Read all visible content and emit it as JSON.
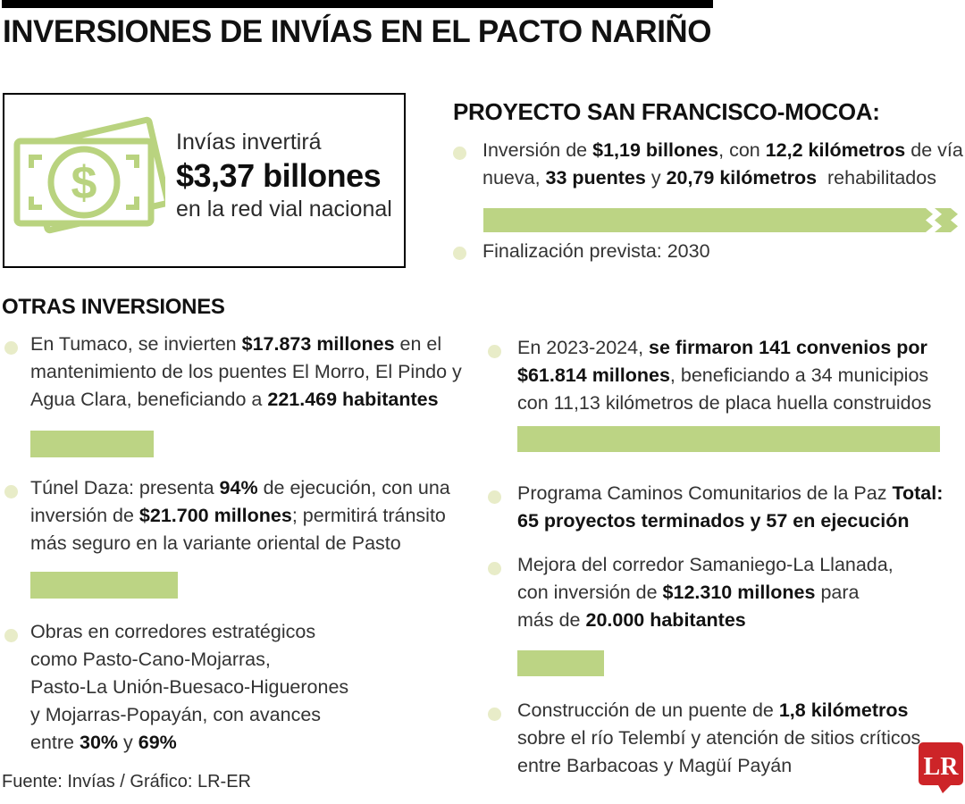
{
  "page": {
    "title": "INVERSIONES DE INVÍAS EN EL PACTO NARIÑO"
  },
  "summary_box": {
    "icon": "money-banknote-icon",
    "intro": "Invías invertirá",
    "amount": "$3,37 billones",
    "caption": "en la red vial nacional"
  },
  "project_section": {
    "heading": "PROYECTO SAN FRANCISCO-MOCOA:",
    "bullet1": [
      {
        "t": "Inversión de "
      },
      {
        "t": "$1,19 billones",
        "b": true
      },
      {
        "t": ", con "
      },
      {
        "t": "12,2 kilómetros",
        "b": true
      },
      {
        "t": " de vía",
        "br": true
      },
      {
        "t": "nueva, "
      },
      {
        "t": "33 puentes",
        "b": true
      },
      {
        "t": " y "
      },
      {
        "t": "20,79 kilómetros",
        "b": true
      },
      {
        "t": "  rehabilitados"
      }
    ],
    "bullet2": [
      {
        "t": "Finalización prevista: 2030"
      }
    ]
  },
  "others_section": {
    "heading": "OTRAS INVERSIONES",
    "left_bullet1": [
      {
        "t": "En Tumaco, se invierten "
      },
      {
        "t": "$17.873 millones",
        "b": true
      },
      {
        "t": " en el",
        "br": true
      },
      {
        "t": "mantenimiento de los puentes El Morro, El Pindo y",
        "br": true
      },
      {
        "t": "Agua Clara, beneficiando a "
      },
      {
        "t": "221.469 habitantes",
        "b": true
      }
    ],
    "left_bullet2": [
      {
        "t": "Túnel Daza: presenta "
      },
      {
        "t": "94%",
        "b": true
      },
      {
        "t": " de ejecución, con una",
        "br": true
      },
      {
        "t": "inversión de "
      },
      {
        "t": "$21.700 millones",
        "b": true
      },
      {
        "t": "; permitirá tránsito",
        "br": true
      },
      {
        "t": "más seguro en la variante oriental de Pasto"
      }
    ],
    "left_bullet3": [
      {
        "t": "Obras en corredores estratégicos",
        "br": true
      },
      {
        "t": "como Pasto-Cano-Mojarras,",
        "br": true
      },
      {
        "t": "Pasto-La Unión-Buesaco-Higuerones",
        "br": true
      },
      {
        "t": "y Mojarras-Popayán, con avances",
        "br": true
      },
      {
        "t": "entre "
      },
      {
        "t": "30%",
        "b": true
      },
      {
        "t": " y "
      },
      {
        "t": "69%",
        "b": true
      }
    ],
    "right_bullet1": [
      {
        "t": "En 2023-2024, "
      },
      {
        "t": "se firmaron 141 convenios por",
        "b": true,
        "br": true
      },
      {
        "t": "$61.814 millones",
        "b": true
      },
      {
        "t": ", beneficiando a 34 municipios",
        "br": true
      },
      {
        "t": "con 11,13 kilómetros de placa huella construidos"
      }
    ],
    "right_bullet2": [
      {
        "t": "Programa Caminos Comunitarios de la Paz "
      },
      {
        "t": "Total:",
        "b": true,
        "br": true
      },
      {
        "t": "65 proyectos terminados y 57 en ejecución",
        "b": true
      }
    ],
    "right_bullet3": [
      {
        "t": "Mejora del corredor Samaniego-La Llanada,",
        "br": true
      },
      {
        "t": "con inversión de "
      },
      {
        "t": "$12.310 millones",
        "b": true
      },
      {
        "t": " para",
        "br": true
      },
      {
        "t": "más de "
      },
      {
        "t": "20.000 habitantes",
        "b": true
      }
    ],
    "right_bullet4": [
      {
        "t": "Construcción de un puente de "
      },
      {
        "t": "1,8 kilómetros",
        "b": true,
        "br": true
      },
      {
        "t": "sobre el río Telembí y atención de sitios críticos",
        "br": true
      },
      {
        "t": "entre Barbacoas y Magüí Payán"
      }
    ]
  },
  "footer": {
    "credit": "Fuente: Invías / Gráfico: LR-ER"
  },
  "logo": {
    "text": "LR"
  },
  "colors": {
    "accent_green": "#bcd484",
    "icon_green": "#b9d37f",
    "bullet_pale_green": "#e8ecc8",
    "logo_red": "#cd2428",
    "title_black": "#111111",
    "body_text": "#333333"
  }
}
